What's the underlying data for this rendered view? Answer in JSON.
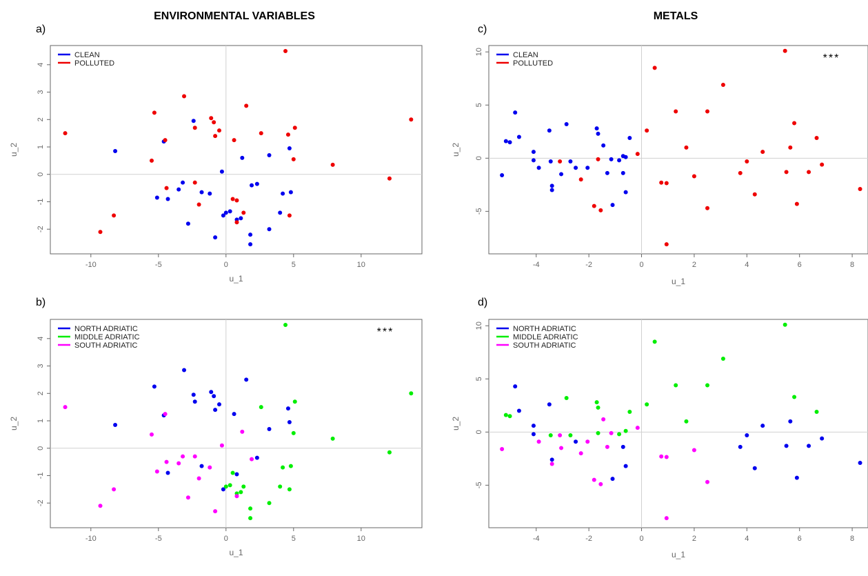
{
  "header": {
    "left_title": "ENVIRONMENTAL VARIABLES",
    "right_title": "METALS"
  },
  "colors": {
    "clean": "#0000ee",
    "polluted": "#ee0000",
    "north": "#0000ee",
    "middle": "#00ee00",
    "south": "#ff00ff"
  },
  "chart_data": [
    {
      "panel": "a)",
      "type": "scatter",
      "xlabel": "u_1",
      "ylabel": "u_2",
      "xlim": [
        -13,
        14.5
      ],
      "ylim": [
        -2.9,
        4.7
      ],
      "xticks": [
        -10,
        -5,
        0,
        5,
        10
      ],
      "yticks": [
        -2,
        -1,
        0,
        1,
        2,
        3,
        4
      ],
      "significance": "",
      "legend": "top-left",
      "series": [
        {
          "name": "CLEAN",
          "color": "#0000ee",
          "points": [
            [
              -8.2,
              0.85
            ],
            [
              -4.6,
              1.2
            ],
            [
              -2.4,
              1.95
            ],
            [
              -1.8,
              -0.65
            ],
            [
              -2.8,
              -1.8
            ],
            [
              -3.2,
              -0.3
            ],
            [
              -3.5,
              -0.55
            ],
            [
              -4.3,
              -0.9
            ],
            [
              -5.1,
              -0.85
            ],
            [
              -1.2,
              -0.7
            ],
            [
              -0.8,
              -2.3
            ],
            [
              -0.3,
              0.1
            ],
            [
              -0.2,
              -1.5
            ],
            [
              0,
              -1.4
            ],
            [
              0.3,
              -1.35
            ],
            [
              0.8,
              -1.65
            ],
            [
              1.1,
              -1.6
            ],
            [
              1.2,
              0.6
            ],
            [
              1.8,
              -2.2
            ],
            [
              1.8,
              -2.55
            ],
            [
              1.9,
              -0.4
            ],
            [
              2.3,
              -0.35
            ],
            [
              3.2,
              0.7
            ],
            [
              3.2,
              -2.0
            ],
            [
              4.0,
              -1.4
            ],
            [
              4.2,
              -0.7
            ],
            [
              4.7,
              0.95
            ],
            [
              4.8,
              -0.65
            ]
          ]
        },
        {
          "name": "POLLUTED",
          "color": "#ee0000",
          "points": [
            [
              -11.9,
              1.5
            ],
            [
              -9.3,
              -2.1
            ],
            [
              -8.3,
              -1.5
            ],
            [
              -5.5,
              0.5
            ],
            [
              -5.3,
              2.25
            ],
            [
              -4.5,
              1.25
            ],
            [
              -4.4,
              -0.5
            ],
            [
              -3.1,
              2.85
            ],
            [
              -2.3,
              1.7
            ],
            [
              -2.3,
              -0.3
            ],
            [
              -2.0,
              -1.1
            ],
            [
              -1.1,
              2.05
            ],
            [
              -0.9,
              1.9
            ],
            [
              -0.8,
              1.4
            ],
            [
              -0.5,
              1.6
            ],
            [
              0.6,
              1.25
            ],
            [
              0.5,
              -0.9
            ],
            [
              0.8,
              -0.95
            ],
            [
              0.8,
              -1.75
            ],
            [
              1.3,
              -1.4
            ],
            [
              1.5,
              2.5
            ],
            [
              2.6,
              1.5
            ],
            [
              4.4,
              4.5
            ],
            [
              4.6,
              1.45
            ],
            [
              4.7,
              -1.5
            ],
            [
              5.0,
              0.55
            ],
            [
              5.1,
              1.7
            ],
            [
              7.9,
              0.35
            ],
            [
              12.1,
              -0.15
            ],
            [
              13.7,
              2.0
            ]
          ]
        }
      ]
    },
    {
      "panel": "b)",
      "type": "scatter",
      "xlabel": "u_1",
      "ylabel": "u_2",
      "xlim": [
        -13,
        14.5
      ],
      "ylim": [
        -2.9,
        4.7
      ],
      "xticks": [
        -10,
        -5,
        0,
        5,
        10
      ],
      "yticks": [
        -2,
        -1,
        0,
        1,
        2,
        3,
        4
      ],
      "significance": "***",
      "legend": "top-left",
      "series": [
        {
          "name": "NORTH ADRIATIC",
          "color": "#0000ee",
          "points": [
            [
              -8.2,
              0.85
            ],
            [
              -5.3,
              2.25
            ],
            [
              -4.6,
              1.2
            ],
            [
              -4.3,
              -0.9
            ],
            [
              -3.1,
              2.85
            ],
            [
              -2.4,
              1.95
            ],
            [
              -2.3,
              1.7
            ],
            [
              -1.8,
              -0.65
            ],
            [
              -1.1,
              2.05
            ],
            [
              -0.9,
              1.9
            ],
            [
              -0.8,
              1.4
            ],
            [
              -0.5,
              1.6
            ],
            [
              -0.2,
              -1.5
            ],
            [
              0.6,
              1.25
            ],
            [
              0.8,
              -0.95
            ],
            [
              1.5,
              2.5
            ],
            [
              2.3,
              -0.35
            ],
            [
              3.2,
              0.7
            ],
            [
              4.6,
              1.45
            ],
            [
              4.7,
              0.95
            ]
          ]
        },
        {
          "name": "MIDDLE ADRIATIC",
          "color": "#00ee00",
          "points": [
            [
              0,
              -1.4
            ],
            [
              0.3,
              -1.35
            ],
            [
              0.5,
              -0.9
            ],
            [
              0.8,
              -1.65
            ],
            [
              1.1,
              -1.6
            ],
            [
              1.3,
              -1.4
            ],
            [
              1.8,
              -2.2
            ],
            [
              1.8,
              -2.55
            ],
            [
              2.6,
              1.5
            ],
            [
              3.2,
              -2.0
            ],
            [
              4.0,
              -1.4
            ],
            [
              4.2,
              -0.7
            ],
            [
              4.4,
              4.5
            ],
            [
              4.7,
              -1.5
            ],
            [
              4.8,
              -0.65
            ],
            [
              5.0,
              0.55
            ],
            [
              5.1,
              1.7
            ],
            [
              7.9,
              0.35
            ],
            [
              12.1,
              -0.15
            ],
            [
              13.7,
              2.0
            ]
          ]
        },
        {
          "name": "SOUTH ADRIATIC",
          "color": "#ff00ff",
          "points": [
            [
              -11.9,
              1.5
            ],
            [
              -9.3,
              -2.1
            ],
            [
              -8.3,
              -1.5
            ],
            [
              -5.5,
              0.5
            ],
            [
              -5.1,
              -0.85
            ],
            [
              -4.5,
              1.25
            ],
            [
              -4.4,
              -0.5
            ],
            [
              -3.5,
              -0.55
            ],
            [
              -3.2,
              -0.3
            ],
            [
              -2.8,
              -1.8
            ],
            [
              -2.3,
              -0.3
            ],
            [
              -2.0,
              -1.1
            ],
            [
              -1.2,
              -0.7
            ],
            [
              -0.8,
              -2.3
            ],
            [
              -0.3,
              0.1
            ],
            [
              0.8,
              -1.75
            ],
            [
              1.2,
              0.6
            ],
            [
              1.9,
              -0.4
            ]
          ]
        }
      ]
    },
    {
      "panel": "c)",
      "type": "scatter",
      "xlabel": "u_1",
      "ylabel": "u_2",
      "xlim": [
        -5.8,
        8.6
      ],
      "ylim": [
        -9,
        10.6
      ],
      "xticks": [
        -4,
        -2,
        0,
        2,
        4,
        6,
        8
      ],
      "yticks": [
        -5,
        0,
        5,
        10
      ],
      "significance": "***",
      "legend": "top-left",
      "series": [
        {
          "name": "CLEAN",
          "color": "#0000ee",
          "points": [
            [
              -5.3,
              -1.6
            ],
            [
              -5.15,
              1.6
            ],
            [
              -5.0,
              1.5
            ],
            [
              -4.8,
              4.3
            ],
            [
              -4.65,
              2.0
            ],
            [
              -4.1,
              0.6
            ],
            [
              -4.1,
              -0.2
            ],
            [
              -3.9,
              -0.9
            ],
            [
              -3.5,
              2.6
            ],
            [
              -3.45,
              -0.3
            ],
            [
              -3.4,
              -2.6
            ],
            [
              -3.4,
              -3.0
            ],
            [
              -3.05,
              -1.5
            ],
            [
              -2.85,
              3.2
            ],
            [
              -2.7,
              -0.3
            ],
            [
              -2.5,
              -0.9
            ],
            [
              -2.05,
              -0.9
            ],
            [
              -1.7,
              2.8
            ],
            [
              -1.65,
              2.3
            ],
            [
              -1.45,
              1.2
            ],
            [
              -1.3,
              -1.4
            ],
            [
              -1.15,
              -0.1
            ],
            [
              -1.1,
              -4.4
            ],
            [
              -0.85,
              -0.2
            ],
            [
              -0.7,
              -1.4
            ],
            [
              -0.6,
              -3.2
            ],
            [
              -0.7,
              0.2
            ],
            [
              -0.45,
              1.9
            ],
            [
              -0.6,
              0.1
            ]
          ]
        },
        {
          "name": "POLLUTED",
          "color": "#ee0000",
          "points": [
            [
              -3.1,
              -0.3
            ],
            [
              -2.3,
              -2.0
            ],
            [
              -1.8,
              -4.5
            ],
            [
              -1.65,
              -0.1
            ],
            [
              -1.55,
              -4.9
            ],
            [
              -0.15,
              0.4
            ],
            [
              0.2,
              2.6
            ],
            [
              0.5,
              8.5
            ],
            [
              0.75,
              -2.3
            ],
            [
              0.95,
              -2.35
            ],
            [
              0.95,
              -8.1
            ],
            [
              1.3,
              4.4
            ],
            [
              1.7,
              1.0
            ],
            [
              2.0,
              -1.7
            ],
            [
              2.5,
              4.4
            ],
            [
              2.5,
              -4.7
            ],
            [
              3.1,
              6.9
            ],
            [
              3.75,
              -1.4
            ],
            [
              4.0,
              -0.3
            ],
            [
              4.3,
              -3.4
            ],
            [
              4.6,
              0.6
            ],
            [
              5.45,
              10.1
            ],
            [
              5.5,
              -1.3
            ],
            [
              5.65,
              1.0
            ],
            [
              5.8,
              3.3
            ],
            [
              5.9,
              -4.3
            ],
            [
              6.35,
              -1.3
            ],
            [
              6.65,
              1.9
            ],
            [
              6.85,
              -0.6
            ],
            [
              8.3,
              -2.9
            ]
          ]
        }
      ]
    },
    {
      "panel": "d)",
      "type": "scatter",
      "xlabel": "u_1",
      "ylabel": "u_2",
      "xlim": [
        -5.8,
        8.6
      ],
      "ylim": [
        -9,
        10.6
      ],
      "xticks": [
        -4,
        -2,
        0,
        2,
        4,
        6,
        8
      ],
      "yticks": [
        -5,
        0,
        5,
        10
      ],
      "significance": "",
      "legend": "top-left",
      "series": [
        {
          "name": "NORTH ADRIATIC",
          "color": "#0000ee",
          "points": [
            [
              -4.8,
              4.3
            ],
            [
              -4.65,
              2.0
            ],
            [
              -4.1,
              0.6
            ],
            [
              -4.1,
              -0.2
            ],
            [
              -3.5,
              2.6
            ],
            [
              -3.4,
              -2.6
            ],
            [
              -2.5,
              -0.9
            ],
            [
              -1.1,
              -4.4
            ],
            [
              -0.6,
              -3.2
            ],
            [
              -0.7,
              -1.4
            ],
            [
              3.75,
              -1.4
            ],
            [
              4.0,
              -0.3
            ],
            [
              4.3,
              -3.4
            ],
            [
              4.6,
              0.6
            ],
            [
              5.5,
              -1.3
            ],
            [
              5.65,
              1.0
            ],
            [
              5.9,
              -4.3
            ],
            [
              6.35,
              -1.3
            ],
            [
              6.85,
              -0.6
            ],
            [
              8.3,
              -2.9
            ]
          ]
        },
        {
          "name": "MIDDLE ADRIATIC",
          "color": "#00ee00",
          "points": [
            [
              -5.15,
              1.6
            ],
            [
              -5.0,
              1.5
            ],
            [
              -3.45,
              -0.3
            ],
            [
              -2.85,
              3.2
            ],
            [
              -2.7,
              -0.3
            ],
            [
              -1.7,
              2.8
            ],
            [
              -1.65,
              2.3
            ],
            [
              -1.65,
              -0.1
            ],
            [
              -0.85,
              -0.2
            ],
            [
              -0.6,
              0.1
            ],
            [
              -0.45,
              1.9
            ],
            [
              0.2,
              2.6
            ],
            [
              0.5,
              8.5
            ],
            [
              1.3,
              4.4
            ],
            [
              1.7,
              1.0
            ],
            [
              2.5,
              4.4
            ],
            [
              3.1,
              6.9
            ],
            [
              5.45,
              10.1
            ],
            [
              5.8,
              3.3
            ],
            [
              6.65,
              1.9
            ]
          ]
        },
        {
          "name": "SOUTH ADRIATIC",
          "color": "#ff00ff",
          "points": [
            [
              -5.3,
              -1.6
            ],
            [
              -3.9,
              -0.9
            ],
            [
              -3.4,
              -3.0
            ],
            [
              -3.1,
              -0.3
            ],
            [
              -3.05,
              -1.5
            ],
            [
              -2.3,
              -2.0
            ],
            [
              -2.05,
              -0.9
            ],
            [
              -1.8,
              -4.5
            ],
            [
              -1.55,
              -4.9
            ],
            [
              -1.45,
              1.2
            ],
            [
              -1.3,
              -1.4
            ],
            [
              -1.15,
              -0.1
            ],
            [
              -0.15,
              0.4
            ],
            [
              0.75,
              -2.3
            ],
            [
              0.95,
              -2.35
            ],
            [
              0.95,
              -8.1
            ],
            [
              2.0,
              -1.7
            ],
            [
              2.5,
              -4.7
            ]
          ]
        }
      ]
    }
  ]
}
